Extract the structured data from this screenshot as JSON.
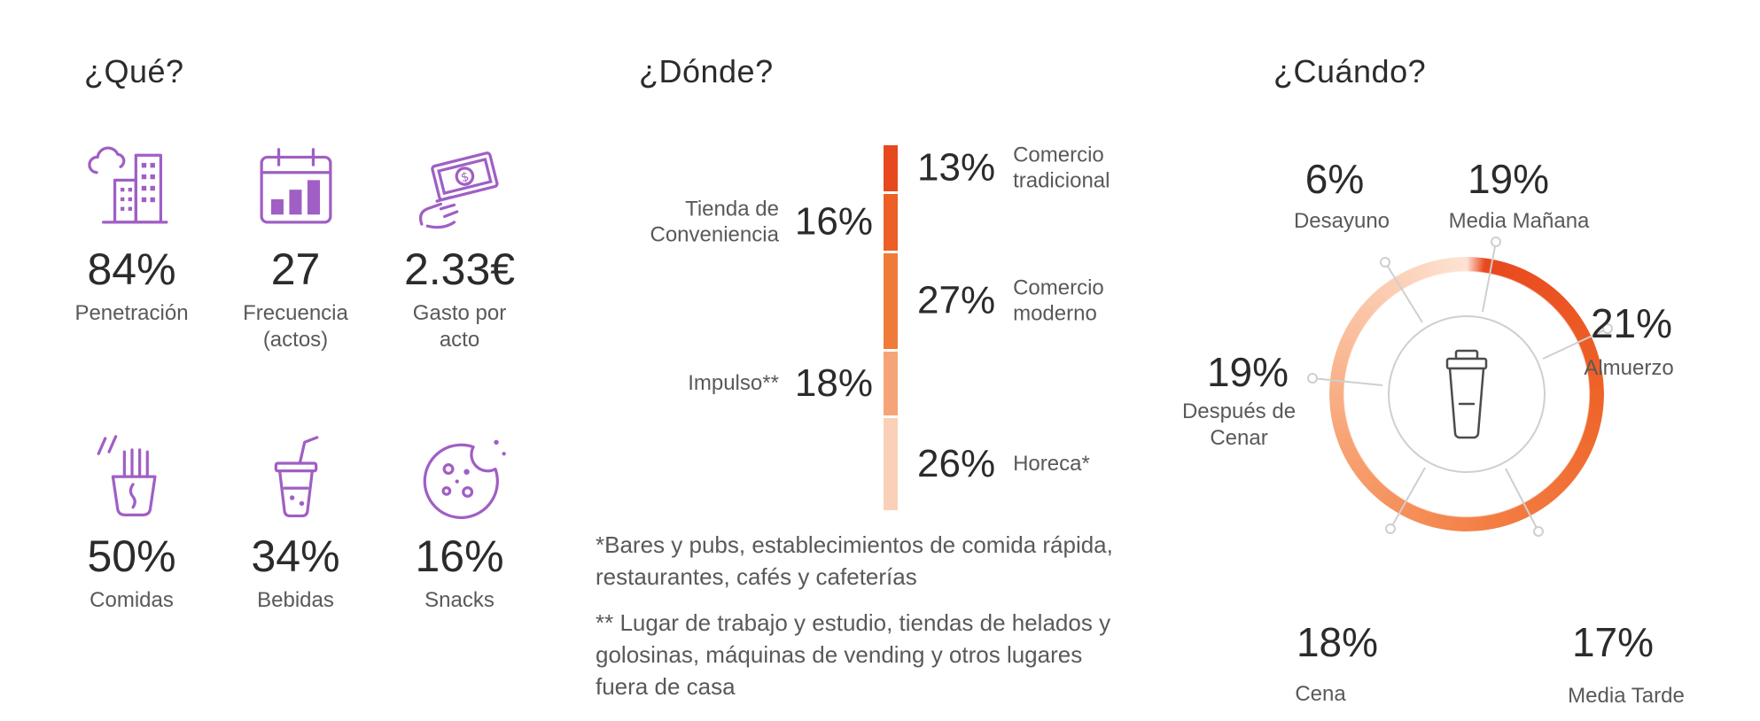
{
  "colors": {
    "purple": "#a05fc4",
    "text_dark": "#2b2b2b",
    "text_gray": "#58595b",
    "line_gray": "#cfcfcf",
    "bar_colors": [
      "#e8481e",
      "#ec5f26",
      "#f07a38",
      "#f6a477",
      "#fbd0b8"
    ],
    "donut_gradient": [
      "#e8481e",
      "#ee6328",
      "#f37d42",
      "#f7a374",
      "#fbcdb2",
      "#fde3d4"
    ]
  },
  "que": {
    "title": "¿Qué?",
    "stats": [
      {
        "icon": "city-icon",
        "value": "84%",
        "label": "Penetración"
      },
      {
        "icon": "calendar-icon",
        "value": "27",
        "label": "Frecuencia (actos)"
      },
      {
        "icon": "banknote-hand-icon",
        "value": "2.33€",
        "label": "Gasto por acto"
      },
      {
        "icon": "noodles-icon",
        "value": "50%",
        "label": "Comidas"
      },
      {
        "icon": "drink-icon",
        "value": "34%",
        "label": "Bebidas"
      },
      {
        "icon": "cookie-icon",
        "value": "16%",
        "label": "Snacks"
      }
    ]
  },
  "donde": {
    "title": "¿Dónde?",
    "right_rows": [
      {
        "value": "13%",
        "label": "Comercio tradicional"
      },
      {
        "value": "27%",
        "label": "Comercio moderno"
      },
      {
        "value": "26%",
        "label": "Horeca*"
      }
    ],
    "left_rows": [
      {
        "label": "Tienda de Conveniencia",
        "value": "16%"
      },
      {
        "label": "Impulso**",
        "value": "18%"
      }
    ],
    "footnote1": "*Bares y pubs, establecimientos de comida rápida, restaurantes, cafés y cafeterías",
    "footnote2": "** Lugar de trabajo y estudio, tiendas de helados y golosinas, máquinas de vending y otros lugares fuera de casa"
  },
  "cuando": {
    "title": "¿Cuándo?",
    "slices": [
      {
        "value": "6%",
        "label": "Desayuno"
      },
      {
        "value": "19%",
        "label": "Media Mañana"
      },
      {
        "value": "21%",
        "label": "Almuerzo"
      },
      {
        "value": "17%",
        "label": "Media Tarde"
      },
      {
        "value": "18%",
        "label": "Cena"
      },
      {
        "value": "19%",
        "label": "Después de Cenar"
      }
    ]
  },
  "chart_data": [
    {
      "type": "table",
      "title": "¿Qué?",
      "rows": [
        [
          "Penetración",
          "84%"
        ],
        [
          "Frecuencia (actos)",
          "27"
        ],
        [
          "Gasto por acto",
          "2.33€"
        ],
        [
          "Comidas",
          "50%"
        ],
        [
          "Bebidas",
          "34%"
        ],
        [
          "Snacks",
          "16%"
        ]
      ]
    },
    {
      "type": "bar",
      "subtype": "stacked-vertical",
      "title": "¿Dónde?",
      "categories": [
        "Comercio tradicional",
        "Tienda de Conveniencia",
        "Comercio moderno",
        "Impulso**",
        "Horeca*"
      ],
      "values": [
        13,
        16,
        27,
        18,
        26
      ],
      "unit": "%",
      "legend_position": "alternating-left-right",
      "grid": false
    },
    {
      "type": "pie",
      "subtype": "donut",
      "title": "¿Cuándo?",
      "categories": [
        "Desayuno",
        "Media Mañana",
        "Almuerzo",
        "Media Tarde",
        "Cena",
        "Después de Cenar"
      ],
      "values": [
        6,
        19,
        21,
        17,
        18,
        19
      ],
      "unit": "%",
      "center_icon": "coffee-cup",
      "grid": false
    }
  ]
}
